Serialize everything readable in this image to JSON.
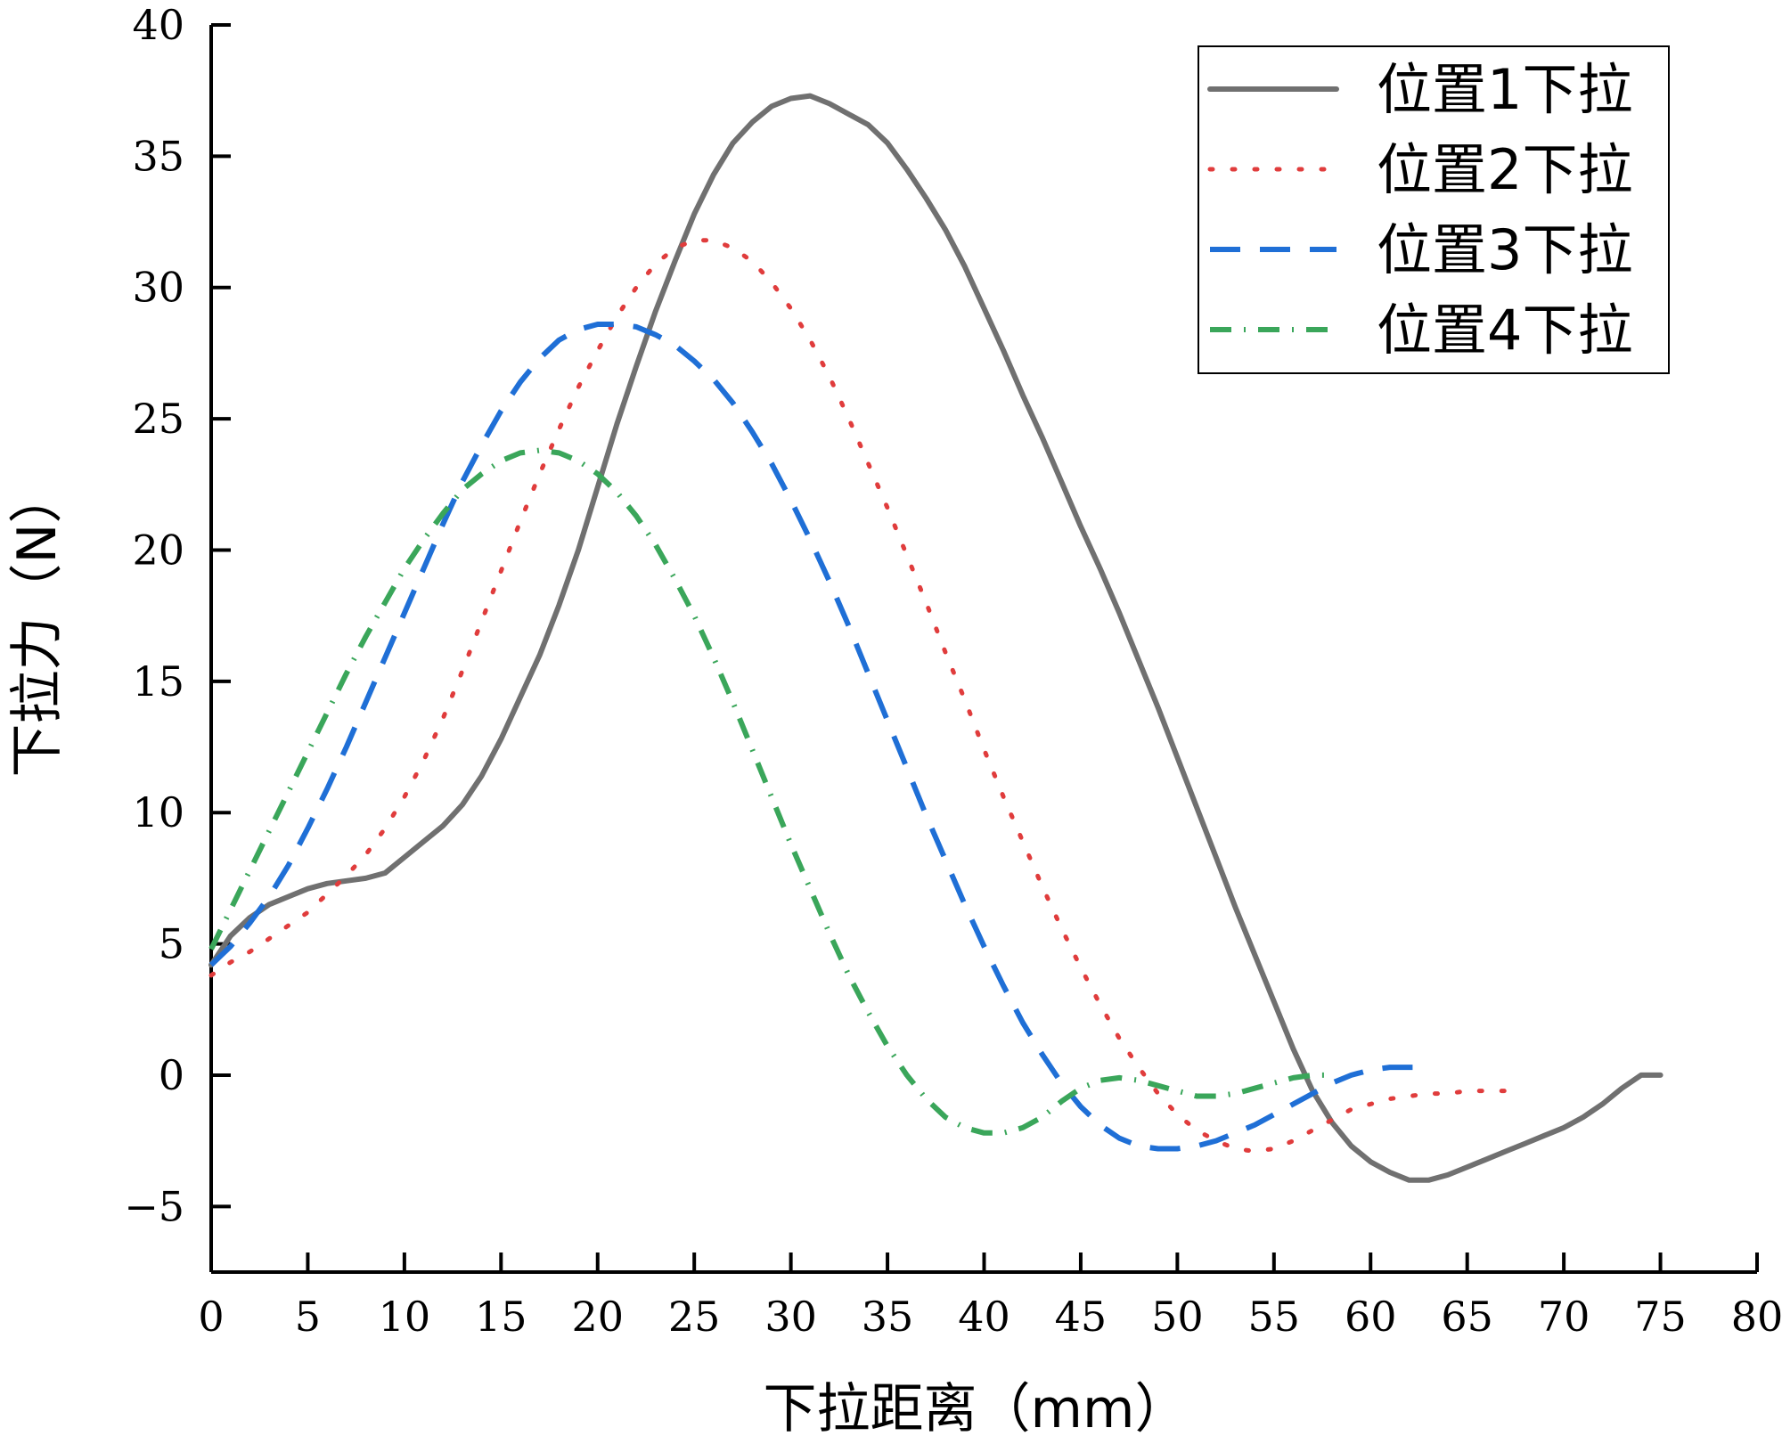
{
  "chart_data": {
    "type": "line",
    "title": "",
    "xlabel": "下拉距离（mm）",
    "ylabel": "下拉力（N）",
    "xlim": [
      0,
      80
    ],
    "ylim": [
      -7.5,
      40
    ],
    "xticks": [
      0,
      5,
      10,
      15,
      20,
      25,
      30,
      35,
      40,
      45,
      50,
      55,
      60,
      65,
      70,
      75,
      80
    ],
    "yticks": [
      -5,
      0,
      5,
      10,
      15,
      20,
      25,
      30,
      35,
      40
    ],
    "xtick_labels": [
      "0",
      "5",
      "10",
      "15",
      "20",
      "25",
      "30",
      "35",
      "40",
      "45",
      "50",
      "55",
      "60",
      "65",
      "70",
      "75",
      "80"
    ],
    "ytick_labels": [
      "−5",
      "0",
      "5",
      "10",
      "15",
      "20",
      "25",
      "30",
      "35",
      "40"
    ],
    "grid": false,
    "legend_position": "top-right",
    "series": [
      {
        "name": "位置1下拉",
        "color": "#707070",
        "style": "solid",
        "x": [
          0,
          1,
          2,
          3,
          4,
          5,
          6,
          7,
          8,
          9,
          10,
          11,
          12,
          13,
          14,
          15,
          16,
          17,
          18,
          19,
          20,
          21,
          22,
          23,
          24,
          25,
          26,
          27,
          28,
          29,
          30,
          31,
          32,
          33,
          34,
          35,
          36,
          37,
          38,
          39,
          40,
          41,
          42,
          43,
          44,
          45,
          46,
          47,
          48,
          49,
          50,
          51,
          52,
          53,
          54,
          55,
          56,
          57,
          58,
          59,
          60,
          61,
          62,
          63,
          64,
          65,
          66,
          67,
          68,
          69,
          70,
          71,
          72,
          73,
          74,
          75
        ],
        "y": [
          4.2,
          5.3,
          6.0,
          6.5,
          6.8,
          7.1,
          7.3,
          7.4,
          7.5,
          7.7,
          8.3,
          8.9,
          9.5,
          10.3,
          11.4,
          12.8,
          14.4,
          16.0,
          17.9,
          20.0,
          22.4,
          24.8,
          27.0,
          29.1,
          31.0,
          32.8,
          34.3,
          35.5,
          36.3,
          36.9,
          37.2,
          37.3,
          37.0,
          36.6,
          36.2,
          35.5,
          34.5,
          33.4,
          32.2,
          30.8,
          29.2,
          27.6,
          25.9,
          24.3,
          22.6,
          20.9,
          19.3,
          17.6,
          15.8,
          14.0,
          12.1,
          10.2,
          8.3,
          6.4,
          4.6,
          2.8,
          1.0,
          -0.6,
          -1.8,
          -2.7,
          -3.3,
          -3.7,
          -4.0,
          -4.0,
          -3.8,
          -3.5,
          -3.2,
          -2.9,
          -2.6,
          -2.3,
          -2.0,
          -1.6,
          -1.1,
          -0.5,
          0.0,
          0.0
        ]
      },
      {
        "name": "位置2下拉",
        "color": "#e03c3c",
        "style": "dotted",
        "x": [
          0,
          1,
          2,
          3,
          4,
          5,
          6,
          7,
          8,
          9,
          10,
          11,
          12,
          13,
          14,
          15,
          16,
          17,
          18,
          19,
          20,
          21,
          22,
          23,
          24,
          25,
          26,
          27,
          28,
          29,
          30,
          31,
          32,
          33,
          34,
          35,
          36,
          37,
          38,
          39,
          40,
          41,
          42,
          43,
          44,
          45,
          46,
          47,
          48,
          49,
          50,
          51,
          52,
          53,
          54,
          55,
          56,
          57,
          58,
          59,
          60,
          61,
          62,
          63,
          64,
          65,
          66,
          67
        ],
        "y": [
          3.8,
          4.3,
          4.7,
          5.2,
          5.7,
          6.2,
          6.9,
          7.6,
          8.4,
          9.4,
          10.6,
          12.0,
          13.6,
          15.4,
          17.3,
          19.2,
          21.1,
          22.9,
          24.6,
          26.2,
          27.6,
          28.9,
          30.0,
          30.9,
          31.5,
          31.8,
          31.8,
          31.5,
          31.0,
          30.2,
          29.2,
          28.0,
          26.6,
          25.0,
          23.3,
          21.6,
          19.8,
          18.0,
          16.1,
          14.3,
          12.4,
          10.6,
          8.9,
          7.2,
          5.6,
          4.1,
          2.7,
          1.4,
          0.3,
          -0.7,
          -1.5,
          -2.1,
          -2.5,
          -2.8,
          -2.9,
          -2.8,
          -2.5,
          -2.1,
          -1.7,
          -1.3,
          -1.1,
          -0.9,
          -0.8,
          -0.7,
          -0.7,
          -0.6,
          -0.6,
          -0.6
        ]
      },
      {
        "name": "位置3下拉",
        "color": "#1f6fd6",
        "style": "dashed",
        "x": [
          0,
          1,
          2,
          3,
          4,
          5,
          6,
          7,
          8,
          9,
          10,
          11,
          12,
          13,
          14,
          15,
          16,
          17,
          18,
          19,
          20,
          21,
          22,
          23,
          24,
          25,
          26,
          27,
          28,
          29,
          30,
          31,
          32,
          33,
          34,
          35,
          36,
          37,
          38,
          39,
          40,
          41,
          42,
          43,
          44,
          45,
          46,
          47,
          48,
          49,
          50,
          51,
          52,
          53,
          54,
          55,
          56,
          57,
          58,
          59,
          60,
          61,
          62,
          63
        ],
        "y": [
          4.2,
          4.9,
          5.8,
          6.8,
          8.0,
          9.4,
          10.9,
          12.5,
          14.2,
          15.9,
          17.6,
          19.3,
          21.0,
          22.6,
          24.0,
          25.3,
          26.4,
          27.3,
          28.0,
          28.4,
          28.6,
          28.6,
          28.5,
          28.2,
          27.8,
          27.2,
          26.5,
          25.6,
          24.5,
          23.3,
          21.9,
          20.4,
          18.8,
          17.1,
          15.3,
          13.5,
          11.7,
          9.9,
          8.2,
          6.5,
          4.9,
          3.4,
          2.0,
          0.8,
          -0.3,
          -1.2,
          -1.9,
          -2.4,
          -2.7,
          -2.8,
          -2.8,
          -2.7,
          -2.5,
          -2.2,
          -1.9,
          -1.5,
          -1.1,
          -0.7,
          -0.3,
          0.0,
          0.2,
          0.3,
          0.3,
          0.3
        ]
      },
      {
        "name": "位置4下拉",
        "color": "#3aa65a",
        "style": "dashdot",
        "x": [
          0,
          1,
          2,
          3,
          4,
          5,
          6,
          7,
          8,
          9,
          10,
          11,
          12,
          13,
          14,
          15,
          16,
          17,
          18,
          19,
          20,
          21,
          22,
          23,
          24,
          25,
          26,
          27,
          28,
          29,
          30,
          31,
          32,
          33,
          34,
          35,
          36,
          37,
          38,
          39,
          40,
          41,
          42,
          43,
          44,
          45,
          46,
          47,
          48,
          49,
          50,
          51,
          52,
          53,
          54,
          55,
          56,
          57,
          58
        ],
        "y": [
          4.8,
          6.3,
          7.8,
          9.3,
          10.8,
          12.3,
          13.8,
          15.3,
          16.7,
          18.0,
          19.3,
          20.4,
          21.4,
          22.3,
          22.9,
          23.4,
          23.7,
          23.8,
          23.7,
          23.4,
          22.9,
          22.2,
          21.3,
          20.2,
          18.9,
          17.5,
          15.9,
          14.2,
          12.4,
          10.6,
          8.8,
          7.1,
          5.4,
          3.8,
          2.4,
          1.1,
          0.0,
          -0.9,
          -1.6,
          -2.0,
          -2.2,
          -2.2,
          -2.0,
          -1.6,
          -1.0,
          -0.5,
          -0.2,
          -0.1,
          -0.2,
          -0.4,
          -0.6,
          -0.8,
          -0.8,
          -0.7,
          -0.5,
          -0.3,
          -0.1,
          0.0,
          0.0
        ]
      }
    ]
  }
}
